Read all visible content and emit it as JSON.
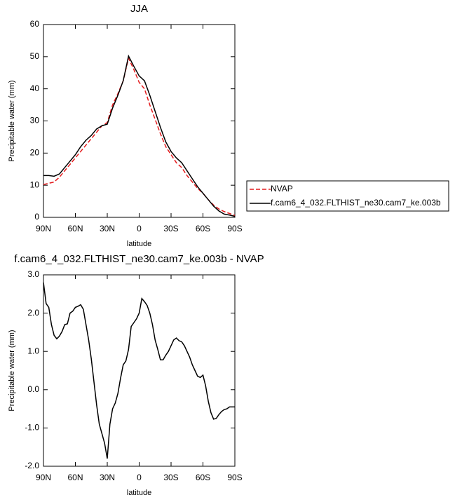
{
  "chart_data": [
    {
      "type": "line",
      "title": "JJA",
      "xlabel": "latitude",
      "ylabel": "Precipitable water (mm)",
      "x": [
        90,
        85,
        80,
        75,
        70,
        65,
        60,
        55,
        50,
        45,
        40,
        35,
        30,
        25,
        20,
        15,
        10,
        5,
        0,
        -5,
        -10,
        -15,
        -20,
        -25,
        -30,
        -35,
        -40,
        -45,
        -50,
        -55,
        -60,
        -65,
        -70,
        -75,
        -80,
        -85,
        -90
      ],
      "xlim": [
        90,
        -90
      ],
      "xticks": [
        {
          "value": 90,
          "label": "90N"
        },
        {
          "value": 60,
          "label": "60N"
        },
        {
          "value": 30,
          "label": "30N"
        },
        0,
        {
          "value": -30,
          "label": "30S"
        },
        {
          "value": -60,
          "label": "60S"
        },
        {
          "value": -90,
          "label": "90S"
        }
      ],
      "ylim": [
        0,
        60
      ],
      "yticks": [
        0,
        10,
        20,
        30,
        40,
        50,
        60
      ],
      "legend": "right",
      "series": [
        {
          "name": "NVAP",
          "color": "#e41a1c",
          "line_style": "dashed",
          "values": [
            10.2,
            10.6,
            11,
            12.5,
            14.5,
            16.5,
            18.5,
            20.5,
            22.5,
            24.5,
            26.5,
            28.5,
            29.5,
            35,
            38.5,
            42.5,
            49.5,
            46,
            42,
            40,
            35,
            30.5,
            26,
            22,
            19.5,
            17,
            15.5,
            13,
            11,
            9,
            7.5,
            5.5,
            3.8,
            2.6,
            1.8,
            1.2,
            0.6
          ]
        },
        {
          "name": "f.cam6_4_032.FLTHIST_ne30.cam7_ke.003b",
          "color": "#000000",
          "line_style": "solid",
          "values": [
            13,
            13,
            12.8,
            13.5,
            15.5,
            17.5,
            19.5,
            22,
            24,
            25.5,
            27.5,
            28.5,
            29,
            34,
            38,
            42.5,
            50.2,
            47,
            44,
            42.5,
            38,
            33,
            28,
            23.5,
            20.5,
            18.5,
            17,
            14.5,
            12,
            9.5,
            7.5,
            5.5,
            3.5,
            2,
            1,
            0.7,
            0.3
          ]
        }
      ]
    },
    {
      "type": "line",
      "title": "f.cam6_4_032.FLTHIST_ne30.cam7_ke.003b - NVAP",
      "xlabel": "latitude",
      "ylabel": "Precipitable water (mm)",
      "x": [
        90,
        87.5,
        85,
        82.5,
        80,
        77.5,
        75,
        72.5,
        70,
        67.5,
        65,
        62.5,
        60,
        57.5,
        55,
        52.5,
        50,
        47.5,
        45,
        42.5,
        40,
        37.5,
        35,
        32.5,
        30,
        27.5,
        25,
        22.5,
        20,
        17.5,
        15,
        12.5,
        10,
        7.5,
        5,
        2.5,
        0,
        -2.5,
        -5,
        -7.5,
        -10,
        -12.5,
        -15,
        -17.5,
        -20,
        -22.5,
        -25,
        -27.5,
        -30,
        -32.5,
        -35,
        -37.5,
        -40,
        -42.5,
        -45,
        -47.5,
        -50,
        -52.5,
        -55,
        -57.5,
        -60,
        -62.5,
        -65,
        -67.5,
        -70,
        -72.5,
        -75,
        -77.5,
        -80,
        -82.5,
        -85,
        -87.5,
        -90
      ],
      "xlim": [
        90,
        -90
      ],
      "xticks": [
        {
          "value": 90,
          "label": "90N"
        },
        {
          "value": 60,
          "label": "60N"
        },
        {
          "value": 30,
          "label": "30N"
        },
        0,
        {
          "value": -30,
          "label": "30S"
        },
        {
          "value": -60,
          "label": "60S"
        },
        {
          "value": -90,
          "label": "90S"
        }
      ],
      "ylim": [
        -2,
        3
      ],
      "yticks": [
        {
          "value": -2,
          "label": "-2.0"
        },
        {
          "value": -1,
          "label": "-1.0"
        },
        {
          "value": 0,
          "label": "0.0"
        },
        {
          "value": 1,
          "label": "1.0"
        },
        {
          "value": 2,
          "label": "2.0"
        },
        {
          "value": 3,
          "label": "3.0"
        }
      ],
      "series": [
        {
          "color": "#000000",
          "line_style": "solid",
          "values": [
            2.8,
            2.25,
            2.15,
            1.7,
            1.42,
            1.33,
            1.4,
            1.52,
            1.7,
            1.72,
            2.0,
            2.05,
            2.15,
            2.18,
            2.22,
            2.1,
            1.7,
            1.3,
            0.8,
            0.2,
            -0.4,
            -0.9,
            -1.15,
            -1.4,
            -1.8,
            -0.9,
            -0.5,
            -0.35,
            -0.1,
            0.3,
            0.65,
            0.75,
            1.05,
            1.65,
            1.75,
            1.85,
            2.0,
            2.38,
            2.3,
            2.2,
            2.0,
            1.7,
            1.3,
            1.05,
            0.78,
            0.78,
            0.9,
            1.0,
            1.15,
            1.3,
            1.35,
            1.28,
            1.25,
            1.15,
            1.0,
            0.85,
            0.65,
            0.5,
            0.35,
            0.32,
            0.38,
            0.1,
            -0.3,
            -0.6,
            -0.77,
            -0.75,
            -0.65,
            -0.57,
            -0.52,
            -0.5,
            -0.45,
            -0.45,
            -0.45
          ]
        }
      ]
    }
  ]
}
